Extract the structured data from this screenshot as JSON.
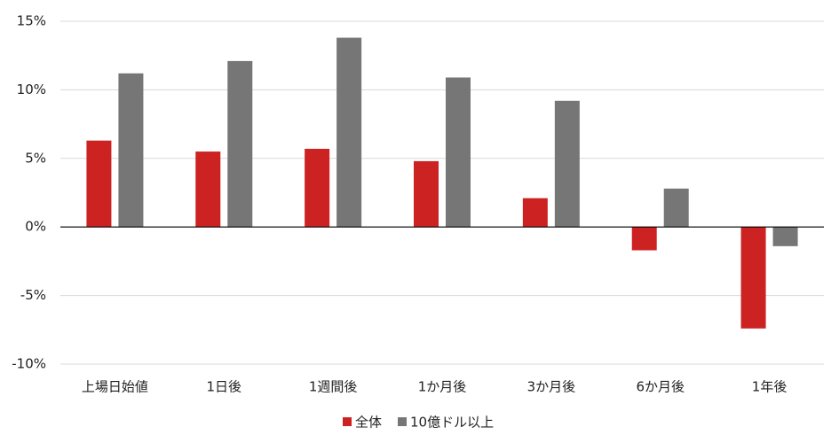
{
  "chart_data": {
    "type": "bar",
    "categories": [
      "上場日始値",
      "1日後",
      "1週間後",
      "1か月後",
      "3か月後",
      "6か月後",
      "1年後"
    ],
    "series": [
      {
        "name": "全体",
        "color": "#cc2222",
        "values": [
          6.3,
          5.5,
          5.7,
          4.8,
          2.1,
          -1.7,
          -7.4
        ]
      },
      {
        "name": "10億ドル以上",
        "color": "#767676",
        "values": [
          11.2,
          12.1,
          13.8,
          10.9,
          9.2,
          2.8,
          -1.4
        ]
      }
    ],
    "ylim": [
      -10,
      15
    ],
    "yticks": [
      {
        "value": -10,
        "label": "-10%"
      },
      {
        "value": -5,
        "label": "-5%"
      },
      {
        "value": 0,
        "label": "0%"
      },
      {
        "value": 5,
        "label": "5%"
      },
      {
        "value": 10,
        "label": "10%"
      },
      {
        "value": 15,
        "label": "15%"
      }
    ],
    "grid": true,
    "legend": "bottom"
  }
}
